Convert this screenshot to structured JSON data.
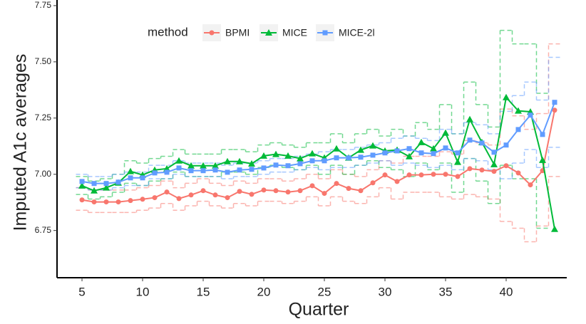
{
  "chart_data": {
    "type": "line",
    "x_label": "Quarter",
    "y_label": "Imputed A1c averages",
    "legend_title": "method",
    "x": [
      5,
      6,
      7,
      8,
      9,
      10,
      11,
      12,
      13,
      14,
      15,
      16,
      17,
      18,
      19,
      20,
      21,
      22,
      23,
      24,
      25,
      26,
      27,
      28,
      29,
      30,
      31,
      32,
      33,
      34,
      35,
      36,
      37,
      38,
      39,
      40,
      41,
      42,
      43,
      44
    ],
    "xlim": [
      2.94,
      45.0
    ],
    "xticks": [
      5,
      10,
      15,
      20,
      25,
      30,
      35,
      40
    ],
    "ylim": [
      6.54,
      7.775
    ],
    "yticks": [
      {
        "value": 6.75,
        "label": "6.75"
      },
      {
        "value": 7.0,
        "label": "7.00"
      },
      {
        "value": 7.25,
        "label": "7.25"
      },
      {
        "value": 7.5,
        "label": "7.50"
      },
      {
        "value": 7.75,
        "label": "7.75"
      }
    ],
    "series": [
      {
        "name": "BPMI",
        "color": "#F8766D",
        "marker": "circle",
        "values": [
          6.886,
          6.877,
          6.877,
          6.877,
          6.883,
          6.889,
          6.896,
          6.921,
          6.892,
          6.908,
          6.927,
          6.908,
          6.896,
          6.924,
          6.911,
          6.93,
          6.927,
          6.921,
          6.927,
          6.949,
          6.915,
          6.959,
          6.937,
          6.927,
          6.962,
          6.997,
          6.968,
          6.997,
          6.997,
          7.0,
          7.0,
          6.99,
          7.025,
          7.019,
          7.013,
          7.038,
          7.006,
          6.953,
          7.016,
          7.285
        ],
        "lower": [
          6.84,
          6.83,
          6.83,
          6.83,
          6.83,
          6.84,
          6.85,
          6.87,
          6.84,
          6.86,
          6.88,
          6.86,
          6.85,
          6.87,
          6.86,
          6.88,
          6.88,
          6.87,
          6.88,
          6.9,
          6.86,
          6.9,
          6.88,
          6.87,
          6.9,
          6.94,
          6.89,
          6.92,
          6.92,
          6.92,
          6.9,
          6.89,
          6.91,
          6.9,
          6.89,
          6.79,
          6.76,
          6.7,
          6.77,
          6.99
        ],
        "upper": [
          6.94,
          6.93,
          6.93,
          6.93,
          6.93,
          6.94,
          6.95,
          6.97,
          6.94,
          6.96,
          6.98,
          6.96,
          6.95,
          6.97,
          6.96,
          6.98,
          6.98,
          6.97,
          6.98,
          7.0,
          6.98,
          7.02,
          7.0,
          6.99,
          7.02,
          7.06,
          7.05,
          7.08,
          7.08,
          7.08,
          7.1,
          7.09,
          7.15,
          7.14,
          7.13,
          7.29,
          7.26,
          7.2,
          7.27,
          7.58
        ]
      },
      {
        "name": "MICE",
        "color": "#00BA38",
        "marker": "triangle",
        "values": [
          6.949,
          6.927,
          6.94,
          6.962,
          7.013,
          6.997,
          7.019,
          7.025,
          7.06,
          7.038,
          7.038,
          7.038,
          7.057,
          7.057,
          7.047,
          7.082,
          7.089,
          7.082,
          7.07,
          7.092,
          7.073,
          7.114,
          7.073,
          7.108,
          7.127,
          7.104,
          7.108,
          7.079,
          7.142,
          7.114,
          7.184,
          7.054,
          7.244,
          7.142,
          7.044,
          7.342,
          7.282,
          7.278,
          7.063,
          6.756
        ],
        "lower": [
          6.91,
          6.89,
          6.9,
          6.92,
          6.96,
          6.95,
          6.97,
          6.98,
          7.01,
          6.99,
          6.99,
          6.99,
          7.01,
          7.01,
          7.0,
          7.03,
          7.04,
          7.03,
          7.02,
          7.04,
          7.0,
          7.04,
          7.0,
          7.04,
          7.06,
          7.03,
          7.02,
          6.99,
          7.05,
          7.02,
          7.05,
          6.92,
          7.07,
          6.97,
          6.87,
          7.04,
          6.98,
          6.98,
          6.76,
          null
        ],
        "upper": [
          6.99,
          6.97,
          6.98,
          7.0,
          7.06,
          7.05,
          7.07,
          7.08,
          7.11,
          7.09,
          7.09,
          7.09,
          7.11,
          7.11,
          7.1,
          7.13,
          7.14,
          7.13,
          7.12,
          7.14,
          7.14,
          7.18,
          7.14,
          7.18,
          7.2,
          7.17,
          7.2,
          7.17,
          7.23,
          7.2,
          7.31,
          7.18,
          7.41,
          7.31,
          7.21,
          7.64,
          7.58,
          7.58,
          7.36,
          null
        ]
      },
      {
        "name": "MICE-2l",
        "color": "#619CFF",
        "marker": "square",
        "values": [
          6.968,
          6.959,
          6.959,
          6.965,
          6.984,
          6.984,
          7.006,
          7.009,
          7.028,
          7.016,
          7.016,
          7.019,
          7.009,
          7.019,
          7.022,
          7.028,
          7.041,
          7.038,
          7.047,
          7.06,
          7.06,
          7.073,
          7.073,
          7.076,
          7.085,
          7.095,
          7.104,
          7.114,
          7.095,
          7.092,
          7.117,
          7.095,
          7.152,
          7.139,
          7.098,
          7.13,
          7.199,
          7.263,
          7.177,
          7.32
        ],
        "lower": [
          6.94,
          6.93,
          6.93,
          6.94,
          6.95,
          6.95,
          6.98,
          6.98,
          7.0,
          6.99,
          6.99,
          6.99,
          6.98,
          6.99,
          6.99,
          7.0,
          7.01,
          7.01,
          7.02,
          7.03,
          7.02,
          7.03,
          7.03,
          7.04,
          7.05,
          7.06,
          7.04,
          7.05,
          7.04,
          7.03,
          7.04,
          7.02,
          7.07,
          7.06,
          7.02,
          6.98,
          7.05,
          7.11,
          7.03,
          7.12
        ],
        "upper": [
          7.0,
          6.99,
          6.99,
          7.0,
          7.01,
          7.01,
          7.04,
          7.04,
          7.06,
          7.05,
          7.05,
          7.05,
          7.04,
          7.05,
          7.05,
          7.06,
          7.07,
          7.07,
          7.08,
          7.09,
          7.1,
          7.11,
          7.11,
          7.12,
          7.13,
          7.14,
          7.16,
          7.17,
          7.16,
          7.15,
          7.2,
          7.18,
          7.23,
          7.22,
          7.18,
          7.28,
          7.35,
          7.41,
          7.33,
          7.52
        ]
      }
    ]
  }
}
